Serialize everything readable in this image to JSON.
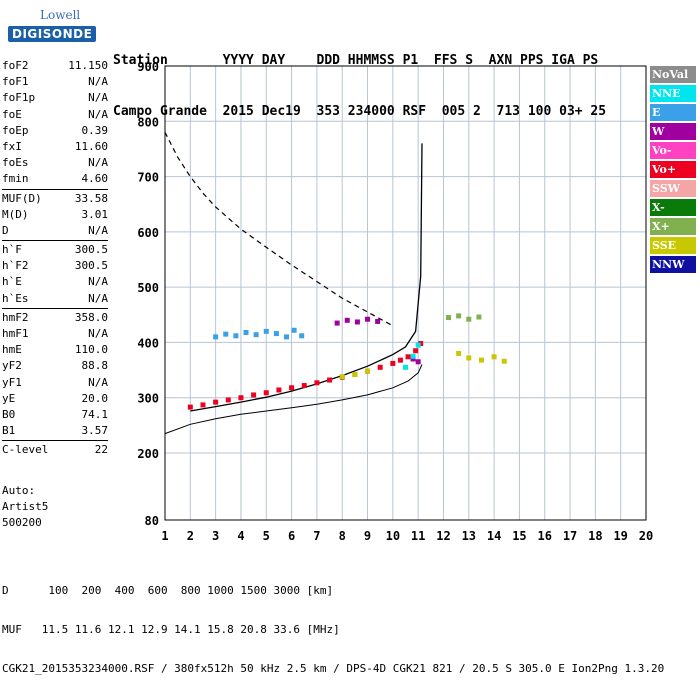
{
  "logo": {
    "line1": "Lowell",
    "line2": "DIGISONDE"
  },
  "header": {
    "line1": "Station       YYYY DAY    DDD HHMMSS P1  FFS S  AXN PPS IGA PS",
    "line2": "Campo Grande  2015 Dec19  353 234000 RSF  005 2  713 100 03+ 25"
  },
  "params": [
    {
      "k": "foF2",
      "v": "11.150"
    },
    {
      "k": "foF1",
      "v": "N/A"
    },
    {
      "k": "foF1p",
      "v": "N/A"
    },
    {
      "k": "foE",
      "v": "N/A"
    },
    {
      "k": "foEp",
      "v": "0.39"
    },
    {
      "k": "fxI",
      "v": "11.60"
    },
    {
      "k": "foEs",
      "v": "N/A"
    },
    {
      "k": "fmin",
      "v": "4.60"
    },
    {
      "k": "MUF(D)",
      "v": "33.58",
      "sep": true
    },
    {
      "k": "M(D)",
      "v": "3.01"
    },
    {
      "k": "D",
      "v": "N/A"
    },
    {
      "k": "h`F",
      "v": "300.5",
      "sep": true
    },
    {
      "k": "h`F2",
      "v": "300.5"
    },
    {
      "k": "h`E",
      "v": "N/A"
    },
    {
      "k": "h`Es",
      "v": "N/A"
    },
    {
      "k": "hmF2",
      "v": "358.0",
      "sep": true
    },
    {
      "k": "hmF1",
      "v": "N/A"
    },
    {
      "k": "hmE",
      "v": "110.0"
    },
    {
      "k": "yF2",
      "v": "88.8"
    },
    {
      "k": "yF1",
      "v": "N/A"
    },
    {
      "k": "yE",
      "v": "20.0"
    },
    {
      "k": "B0",
      "v": "74.1"
    },
    {
      "k": "B1",
      "v": "3.57"
    },
    {
      "k": "C-level",
      "v": "22",
      "sep": true
    }
  ],
  "auto": {
    "line1": "Auto:",
    "line2": "Artist5",
    "line3": "500200"
  },
  "legend": [
    {
      "label": "NoVal",
      "color": "#8c8c8c"
    },
    {
      "label": "NNE",
      "color": "#00e5ee"
    },
    {
      "label": "E",
      "color": "#3aa0e8"
    },
    {
      "label": "W",
      "color": "#a000a0"
    },
    {
      "label": "Vo-",
      "color": "#ff40c0"
    },
    {
      "label": "Vo+",
      "color": "#ee0020"
    },
    {
      "label": "SSW",
      "color": "#f4a6a6"
    },
    {
      "label": "X-",
      "color": "#0a7a0a"
    },
    {
      "label": "X+",
      "color": "#80b050"
    },
    {
      "label": "SSE",
      "color": "#c8c800"
    },
    {
      "label": "NNW",
      "color": "#1010a0"
    }
  ],
  "footer": {
    "line1": "D      100  200  400  600  800 1000 1500 3000 [km]",
    "line2": "MUF   11.5 11.6 12.1 12.9 14.1 15.8 20.8 33.6 [MHz]",
    "line3": "CGK21_2015353234000.RSF / 380fx512h 50 kHz 2.5 km / DPS-4D CGK21 821 / 20.5 S 305.0 E Ion2Png 1.3.20"
  },
  "chart_data": {
    "type": "scatter",
    "x_ticks": [
      "1",
      "2",
      "3",
      "4",
      "5",
      "6",
      "7",
      "8",
      "9",
      "10",
      "11",
      "12",
      "13",
      "14",
      "15",
      "16",
      "17",
      "18",
      "19",
      "20"
    ],
    "y_ticks": [
      "80",
      "200",
      "300",
      "400",
      "500",
      "600",
      "700",
      "800",
      "900"
    ],
    "xlim": [
      1,
      20
    ],
    "y_tick_values": [
      80,
      200,
      300,
      400,
      500,
      600,
      700,
      800,
      900
    ],
    "grid": true,
    "series": [
      {
        "name": "Vo+",
        "color": "#ee0020",
        "x": [
          2.0,
          2.5,
          3.0,
          3.5,
          4.0,
          4.5,
          5.0,
          5.5,
          6.0,
          6.5,
          7.0,
          7.5,
          8.0,
          8.5,
          9.0,
          9.5,
          10.0,
          10.3,
          10.6,
          10.9,
          11.1
        ],
        "y": [
          283,
          287,
          292,
          296,
          300,
          305,
          309,
          314,
          318,
          322,
          327,
          332,
          337,
          342,
          348,
          355,
          362,
          368,
          374,
          385,
          398
        ]
      },
      {
        "name": "E",
        "color": "#3aa0e8",
        "x": [
          3.0,
          3.4,
          3.8,
          4.2,
          4.6,
          5.0,
          5.4,
          5.8,
          6.1,
          6.4
        ],
        "y": [
          410,
          415,
          412,
          418,
          414,
          420,
          416,
          410,
          422,
          412
        ]
      },
      {
        "name": "W",
        "color": "#a000a0",
        "x": [
          7.8,
          8.2,
          8.6,
          9.0,
          9.4,
          10.8,
          11.0
        ],
        "y": [
          435,
          440,
          437,
          442,
          438,
          370,
          365
        ]
      },
      {
        "name": "SSE",
        "color": "#c8c800",
        "x": [
          8.0,
          8.5,
          9.0,
          12.6,
          13.0,
          13.5,
          14.0,
          14.4
        ],
        "y": [
          338,
          342,
          348,
          380,
          372,
          368,
          374,
          366
        ]
      },
      {
        "name": "X+",
        "color": "#80b050",
        "x": [
          12.2,
          12.6,
          13.0,
          13.4
        ],
        "y": [
          445,
          448,
          442,
          446
        ]
      },
      {
        "name": "NNE",
        "color": "#00e5ee",
        "x": [
          10.5,
          10.8,
          11.0
        ],
        "y": [
          355,
          375,
          395
        ]
      }
    ],
    "profile_curve": {
      "x": [
        2.0,
        3.0,
        4.0,
        5.0,
        6.0,
        7.0,
        8.0,
        9.0,
        10.0,
        10.5,
        10.9,
        11.1,
        11.15
      ],
      "y": [
        276,
        284,
        292,
        301,
        312,
        325,
        340,
        357,
        378,
        392,
        420,
        520,
        760
      ]
    },
    "virtual_height_curve": {
      "x": [
        1.0,
        2.0,
        3.0,
        4.0,
        5.0,
        6.0,
        7.0,
        8.0,
        9.0,
        10.0,
        10.6,
        11.0,
        11.15
      ],
      "y": [
        235,
        252,
        262,
        270,
        276,
        282,
        288,
        296,
        305,
        318,
        330,
        345,
        360
      ]
    },
    "muf_curve": {
      "x": [
        1.0,
        1.5,
        2.0,
        2.5,
        3.0,
        4.0,
        5.0,
        6.0,
        7.0,
        8.0,
        9.0,
        10.0
      ],
      "y": [
        780,
        735,
        700,
        670,
        645,
        605,
        572,
        540,
        510,
        480,
        455,
        430
      ]
    }
  }
}
